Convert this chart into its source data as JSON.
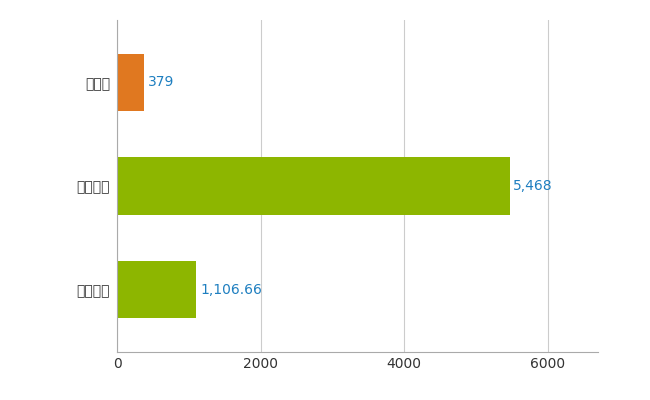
{
  "categories": [
    "全国平均",
    "全国最大",
    "秋田県"
  ],
  "values": [
    1106.66,
    5468,
    379
  ],
  "bar_colors": [
    "#8db600",
    "#8db600",
    "#e07820"
  ],
  "bar_labels": [
    "1,106.66",
    "5,468",
    "379"
  ],
  "label_color": "#1e7fc0",
  "xlim": [
    0,
    6700
  ],
  "xticks": [
    0,
    2000,
    4000,
    6000
  ],
  "grid_color": "#cccccc",
  "background_color": "#ffffff",
  "bar_height": 0.55,
  "figsize": [
    6.5,
    4.0
  ],
  "dpi": 100,
  "label_fontsize": 10,
  "tick_fontsize": 10
}
